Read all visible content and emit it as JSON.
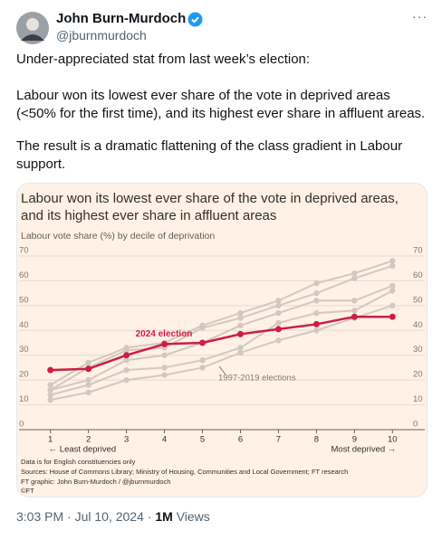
{
  "tweet": {
    "author": {
      "name": "John Burn-Murdoch",
      "handle": "@jburnmurdoch"
    },
    "paragraphs": [
      "Under-appreciated stat from last week’s election:",
      "Labour won its lowest ever share of the vote in deprived areas (<50% for the first time), and its highest ever share in affluent areas.",
      "The result is a dramatic flattening of the class gradient in Labour support."
    ],
    "time": "3:03 PM",
    "separator": "·",
    "date": "Jul 10, 2024",
    "views": "1M",
    "views_label": "Views"
  },
  "chart_data": {
    "type": "line",
    "title": "Labour won its lowest ever share of the vote in deprived areas, and its highest ever share in affluent areas",
    "subtitle": "Labour vote share (%) by decile of deprivation",
    "x": [
      1,
      2,
      3,
      4,
      5,
      6,
      7,
      8,
      9,
      10
    ],
    "xlim": [
      0.65,
      10.35
    ],
    "xticks": [
      1,
      2,
      3,
      4,
      5,
      6,
      7,
      8,
      9,
      10
    ],
    "ylim": [
      0,
      70
    ],
    "yticks": [
      0,
      10,
      20,
      30,
      40,
      50,
      60,
      70
    ],
    "x_axis_labels": [
      "← Least deprived",
      "Most deprived →"
    ],
    "grid": true,
    "series": [
      {
        "name": "2024 election",
        "color": "#cc1f42",
        "values": [
          24,
          24.5,
          30,
          34.5,
          35,
          38.5,
          40.5,
          42.5,
          45.5,
          45.5
        ]
      },
      {
        "color": "#d2c8c1",
        "values": [
          18,
          27,
          33,
          35,
          42,
          47,
          52,
          59,
          63,
          68
        ]
      },
      {
        "color": "#d2c8c1",
        "values": [
          16,
          25,
          32,
          33,
          41,
          45,
          50,
          55,
          61,
          66
        ]
      },
      {
        "color": "#d2c8c1",
        "values": [
          16,
          20,
          28,
          30,
          35,
          42,
          47,
          52,
          52,
          58
        ]
      },
      {
        "color": "#d2c8c1",
        "values": [
          14,
          18,
          24,
          25,
          28,
          33,
          43,
          47,
          48,
          56
        ]
      },
      {
        "color": "#d2c8c1",
        "values": [
          12,
          15,
          20,
          22,
          25,
          31,
          36,
          40,
          45,
          50
        ]
      }
    ],
    "annotations": [
      "1997-2019 elections"
    ],
    "footnotes": [
      "Data is for English constituencies only",
      "Sources: House of Commons Library; Ministry of Housing, Communities and Local Government; FT research",
      "FT graphic: John Burn-Murdoch / @jburnmurdoch",
      "©FT"
    ]
  }
}
